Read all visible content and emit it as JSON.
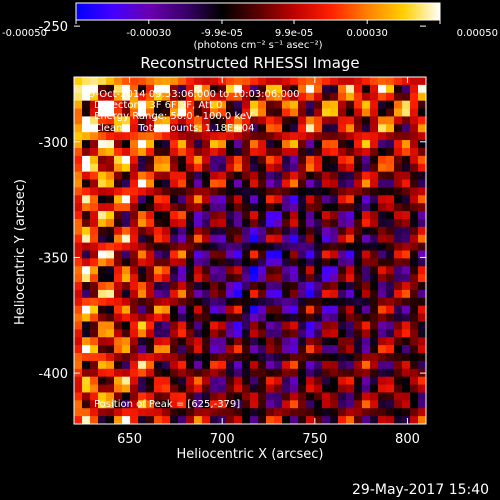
{
  "chart_data": {
    "type": "heatmap",
    "title": "Reconstructed RHESSI Image",
    "xlabel": "Heliocentric X (arcsec)",
    "ylabel": "Heliocentric Y (arcsec)",
    "xlim": [
      620,
      810
    ],
    "ylim": [
      -422,
      -272
    ],
    "x_ticks": [
      650,
      700,
      750,
      800
    ],
    "y_ticks": [
      -250,
      -300,
      -350,
      -400
    ],
    "annotations": [
      "9-Oct-2014 09:53:06.000 to 10:03:06.000",
      "Detectors: 3F 6F 9F, Att 0",
      "Energy Range: 50.0 - 100.0 keV",
      "Clean     Total counts: 1.18E+04",
      "Position of Peak = [625,-379]"
    ],
    "peak_position": [
      625,
      -379
    ],
    "colorbar": {
      "min": -0.0005,
      "max": 0.0005,
      "ticks": [
        "-0.00050",
        "-0.00030",
        "-9.9e-05",
        "9.9e-05",
        "0.00030",
        "0.00050"
      ],
      "tick_values": [
        -0.0005,
        -0.0003,
        -9.9e-05,
        9.9e-05,
        0.0003,
        0.0005
      ],
      "unit_label": "(photons cm⁻² s⁻¹ asec⁻²)",
      "colormap": [
        "#0000ff",
        "#4400ff",
        "#6a00b0",
        "#3a006a",
        "#000000",
        "#5a0000",
        "#c00000",
        "#ff2000",
        "#ff8000",
        "#ffd000",
        "#ffffff"
      ]
    },
    "grid": false
  },
  "footer": {
    "timestamp": "29-May-2017 15:40"
  }
}
